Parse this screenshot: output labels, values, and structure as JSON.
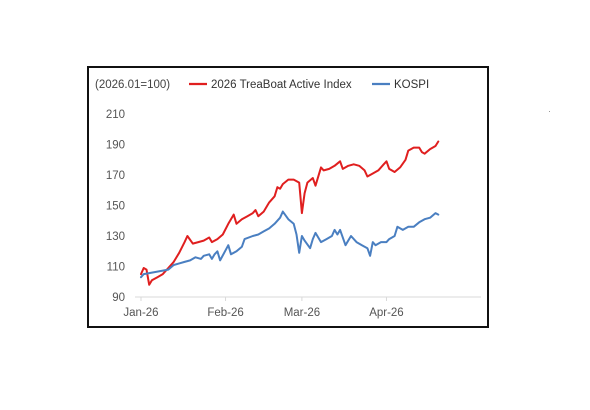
{
  "chart_data": {
    "type": "line",
    "note": "(2026.01=100)",
    "title": "",
    "xlabel": "",
    "ylabel": "",
    "ylim": [
      90,
      210
    ],
    "yticks": [
      90,
      110,
      130,
      150,
      170,
      190,
      210
    ],
    "xlim": [
      "2026-01-01",
      "2026-04-21"
    ],
    "xticks": [
      {
        "date": "2026-01-01",
        "label": "Jan-26"
      },
      {
        "date": "2026-02-01",
        "label": "Feb-26"
      },
      {
        "date": "2026-03-01",
        "label": "Mar-26"
      },
      {
        "date": "2026-04-01",
        "label": "Apr-26"
      }
    ],
    "grid": false,
    "legend_position": "top",
    "series": [
      {
        "name": "2026 TreaBoat Active Index",
        "color": "#e01f1f",
        "points": [
          [
            "2026-01-01",
            105
          ],
          [
            "2026-01-02",
            109
          ],
          [
            "2026-01-03",
            108
          ],
          [
            "2026-01-04",
            98
          ],
          [
            "2026-01-05",
            101
          ],
          [
            "2026-01-07",
            103
          ],
          [
            "2026-01-09",
            105
          ],
          [
            "2026-01-11",
            109
          ],
          [
            "2026-01-13",
            113
          ],
          [
            "2026-01-15",
            119
          ],
          [
            "2026-01-17",
            126
          ],
          [
            "2026-01-18",
            130
          ],
          [
            "2026-01-20",
            125
          ],
          [
            "2026-01-22",
            126
          ],
          [
            "2026-01-24",
            127
          ],
          [
            "2026-01-26",
            129
          ],
          [
            "2026-01-27",
            126
          ],
          [
            "2026-01-29",
            128
          ],
          [
            "2026-01-31",
            131
          ],
          [
            "2026-02-02",
            138
          ],
          [
            "2026-02-04",
            144
          ],
          [
            "2026-02-05",
            138
          ],
          [
            "2026-02-07",
            141
          ],
          [
            "2026-02-09",
            143
          ],
          [
            "2026-02-11",
            145
          ],
          [
            "2026-02-12",
            147
          ],
          [
            "2026-02-13",
            143
          ],
          [
            "2026-02-15",
            146
          ],
          [
            "2026-02-17",
            152
          ],
          [
            "2026-02-19",
            156
          ],
          [
            "2026-02-20",
            162
          ],
          [
            "2026-02-21",
            161
          ],
          [
            "2026-02-22",
            164
          ],
          [
            "2026-02-24",
            167
          ],
          [
            "2026-02-26",
            167
          ],
          [
            "2026-02-28",
            165
          ],
          [
            "2026-03-01",
            145
          ],
          [
            "2026-03-02",
            158
          ],
          [
            "2026-03-03",
            165
          ],
          [
            "2026-03-05",
            168
          ],
          [
            "2026-03-06",
            163
          ],
          [
            "2026-03-08",
            175
          ],
          [
            "2026-03-09",
            173
          ],
          [
            "2026-03-11",
            174
          ],
          [
            "2026-03-13",
            176
          ],
          [
            "2026-03-15",
            179
          ],
          [
            "2026-03-16",
            174
          ],
          [
            "2026-03-18",
            176
          ],
          [
            "2026-03-20",
            177
          ],
          [
            "2026-03-22",
            176
          ],
          [
            "2026-03-24",
            173
          ],
          [
            "2026-03-25",
            169
          ],
          [
            "2026-03-27",
            171
          ],
          [
            "2026-03-29",
            173
          ],
          [
            "2026-03-31",
            177
          ],
          [
            "2026-04-01",
            179
          ],
          [
            "2026-04-02",
            174
          ],
          [
            "2026-04-04",
            172
          ],
          [
            "2026-04-06",
            175
          ],
          [
            "2026-04-08",
            180
          ],
          [
            "2026-04-09",
            186
          ],
          [
            "2026-04-11",
            188
          ],
          [
            "2026-04-13",
            188
          ],
          [
            "2026-04-14",
            185
          ],
          [
            "2026-04-15",
            184
          ],
          [
            "2026-04-17",
            187
          ],
          [
            "2026-04-19",
            189
          ],
          [
            "2026-04-20",
            192
          ]
        ]
      },
      {
        "name": "KOSPI",
        "color": "#4a7fc1",
        "points": [
          [
            "2026-01-01",
            103
          ],
          [
            "2026-01-02",
            105
          ],
          [
            "2026-01-05",
            106
          ],
          [
            "2026-01-08",
            107
          ],
          [
            "2026-01-11",
            108
          ],
          [
            "2026-01-13",
            111
          ],
          [
            "2026-01-15",
            112
          ],
          [
            "2026-01-17",
            113
          ],
          [
            "2026-01-19",
            114
          ],
          [
            "2026-01-21",
            116
          ],
          [
            "2026-01-23",
            115
          ],
          [
            "2026-01-24",
            117
          ],
          [
            "2026-01-26",
            118
          ],
          [
            "2026-01-27",
            115
          ],
          [
            "2026-01-28",
            118
          ],
          [
            "2026-01-29",
            120
          ],
          [
            "2026-01-30",
            114
          ],
          [
            "2026-02-02",
            124
          ],
          [
            "2026-02-03",
            118
          ],
          [
            "2026-02-05",
            120
          ],
          [
            "2026-02-07",
            123
          ],
          [
            "2026-02-08",
            128
          ],
          [
            "2026-02-11",
            130
          ],
          [
            "2026-02-13",
            131
          ],
          [
            "2026-02-15",
            133
          ],
          [
            "2026-02-17",
            135
          ],
          [
            "2026-02-19",
            138
          ],
          [
            "2026-02-21",
            142
          ],
          [
            "2026-02-22",
            146
          ],
          [
            "2026-02-24",
            141
          ],
          [
            "2026-02-26",
            138
          ],
          [
            "2026-02-27",
            131
          ],
          [
            "2026-02-28",
            119
          ],
          [
            "2026-03-01",
            130
          ],
          [
            "2026-03-02",
            127
          ],
          [
            "2026-03-04",
            122
          ],
          [
            "2026-03-05",
            128
          ],
          [
            "2026-03-06",
            132
          ],
          [
            "2026-03-08",
            126
          ],
          [
            "2026-03-10",
            128
          ],
          [
            "2026-03-12",
            130
          ],
          [
            "2026-03-13",
            134
          ],
          [
            "2026-03-14",
            131
          ],
          [
            "2026-03-15",
            134
          ],
          [
            "2026-03-17",
            124
          ],
          [
            "2026-03-19",
            130
          ],
          [
            "2026-03-21",
            126
          ],
          [
            "2026-03-23",
            124
          ],
          [
            "2026-03-25",
            122
          ],
          [
            "2026-03-26",
            117
          ],
          [
            "2026-03-27",
            126
          ],
          [
            "2026-03-28",
            124
          ],
          [
            "2026-03-30",
            126
          ],
          [
            "2026-04-01",
            126
          ],
          [
            "2026-04-02",
            128
          ],
          [
            "2026-04-04",
            130
          ],
          [
            "2026-04-05",
            136
          ],
          [
            "2026-04-07",
            134
          ],
          [
            "2026-04-09",
            136
          ],
          [
            "2026-04-11",
            136
          ],
          [
            "2026-04-13",
            139
          ],
          [
            "2026-04-15",
            141
          ],
          [
            "2026-04-17",
            142
          ],
          [
            "2026-04-19",
            145
          ],
          [
            "2026-04-20",
            144
          ]
        ]
      }
    ]
  }
}
